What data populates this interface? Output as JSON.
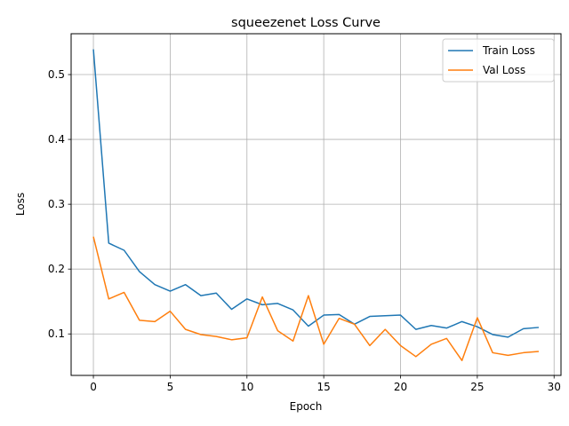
{
  "chart_data": {
    "type": "line",
    "title": "squeezenet Loss Curve",
    "xlabel": "Epoch",
    "ylabel": "Loss",
    "xlim": [
      -1.45,
      30.45
    ],
    "ylim": [
      0.036,
      0.563
    ],
    "xticks": [
      0,
      5,
      10,
      15,
      20,
      25,
      30
    ],
    "yticks": [
      0.1,
      0.2,
      0.3,
      0.4,
      0.5
    ],
    "xtick_labels": [
      "0",
      "5",
      "10",
      "15",
      "20",
      "25",
      "30"
    ],
    "ytick_labels": [
      "0.1",
      "0.2",
      "0.3",
      "0.4",
      "0.5"
    ],
    "grid": true,
    "legend_position": "top-right",
    "x": [
      0,
      1,
      2,
      3,
      4,
      5,
      6,
      7,
      8,
      9,
      10,
      11,
      12,
      13,
      14,
      15,
      16,
      17,
      18,
      19,
      20,
      21,
      22,
      23,
      24,
      25,
      26,
      27,
      28,
      29
    ],
    "series": [
      {
        "name": "Train Loss",
        "color": "#1f77b4",
        "values": [
          0.539,
          0.24,
          0.229,
          0.196,
          0.176,
          0.166,
          0.176,
          0.159,
          0.163,
          0.138,
          0.154,
          0.145,
          0.147,
          0.137,
          0.112,
          0.129,
          0.13,
          0.115,
          0.127,
          0.128,
          0.129,
          0.107,
          0.113,
          0.109,
          0.119,
          0.111,
          0.099,
          0.095,
          0.108,
          0.11
        ]
      },
      {
        "name": "Val Loss",
        "color": "#ff7f0e",
        "values": [
          0.25,
          0.154,
          0.164,
          0.121,
          0.119,
          0.135,
          0.107,
          0.099,
          0.096,
          0.091,
          0.094,
          0.157,
          0.105,
          0.089,
          0.159,
          0.084,
          0.124,
          0.115,
          0.082,
          0.107,
          0.082,
          0.065,
          0.084,
          0.093,
          0.059,
          0.125,
          0.071,
          0.067,
          0.071,
          0.073
        ]
      }
    ]
  }
}
